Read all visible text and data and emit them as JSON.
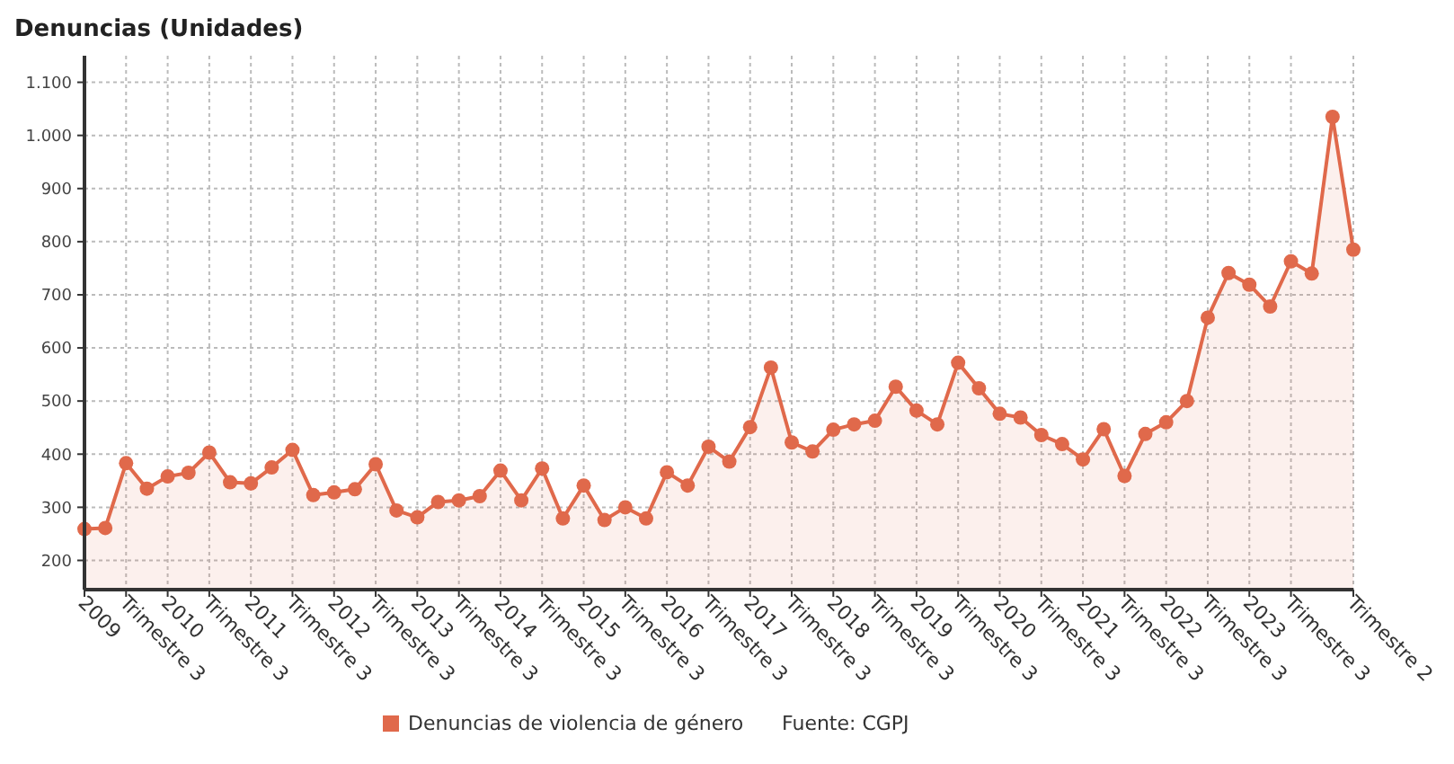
{
  "chart_data": {
    "type": "area",
    "title": "Denuncias (Unidades)",
    "annotations": [
      "Fuente: CGPJ"
    ],
    "categories": [
      "2009",
      null,
      "Trimestre 3",
      null,
      "2010",
      null,
      "Trimestre 3",
      null,
      "2011",
      null,
      "Trimestre 3",
      null,
      "2012",
      null,
      "Trimestre 3",
      null,
      "2013",
      null,
      "Trimestre 3",
      null,
      "2014",
      null,
      "Trimestre 3",
      null,
      "2015",
      null,
      "Trimestre 3",
      null,
      "2016",
      null,
      "Trimestre 3",
      null,
      "2017",
      null,
      "Trimestre 3",
      null,
      "2018",
      null,
      "Trimestre 3",
      null,
      "2019",
      null,
      "Trimestre 3",
      null,
      "2020",
      null,
      "Trimestre 3",
      null,
      "2021",
      null,
      "Trimestre 3",
      null,
      "2022",
      null,
      "Trimestre 3",
      null,
      "2023",
      null,
      "Trimestre 3",
      null,
      null,
      "Trimestre 2"
    ],
    "series": [
      {
        "name": "Denuncias de violencia de género",
        "color": "#e0694b",
        "values": [
          259,
          261,
          383,
          335,
          358,
          365,
          403,
          347,
          345,
          375,
          408,
          323,
          328,
          334,
          381,
          294,
          281,
          310,
          313,
          321,
          369,
          313,
          373,
          279,
          341,
          276,
          300,
          279,
          366,
          341,
          414,
          386,
          451,
          563,
          422,
          405,
          446,
          456,
          463,
          527,
          482,
          456,
          572,
          524,
          476,
          469,
          436,
          419,
          390,
          447,
          359,
          438,
          460,
          500,
          657,
          741,
          719,
          678,
          763,
          740,
          1035,
          785
        ]
      }
    ],
    "ylim": [
      145,
      1150
    ],
    "yticks": [
      {
        "value": 200,
        "label": "200"
      },
      {
        "value": 300,
        "label": "300"
      },
      {
        "value": 400,
        "label": "400"
      },
      {
        "value": 500,
        "label": "500"
      },
      {
        "value": 600,
        "label": "600"
      },
      {
        "value": 700,
        "label": "700"
      },
      {
        "value": 800,
        "label": "800"
      },
      {
        "value": 900,
        "label": "900"
      },
      {
        "value": 1000,
        "label": "1.000"
      },
      {
        "value": 1100,
        "label": "1.100"
      }
    ],
    "grid": true,
    "legend": "bottom",
    "marker": "circle",
    "line_style": "solid"
  }
}
